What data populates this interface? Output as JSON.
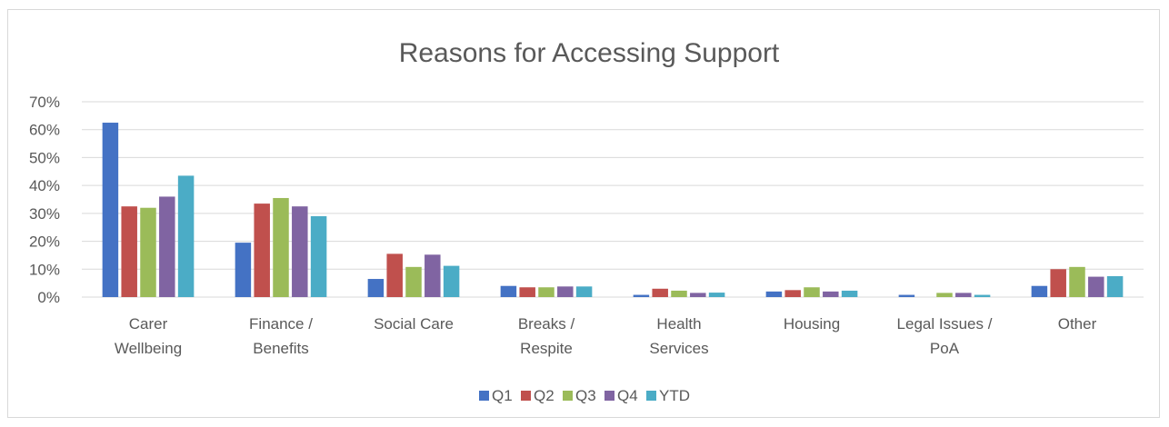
{
  "chart_data": {
    "type": "bar",
    "title": "Reasons for Accessing Support",
    "xlabel": "",
    "ylabel": "",
    "ylim": [
      0,
      70
    ],
    "y_ticks": [
      "0%",
      "10%",
      "20%",
      "30%",
      "40%",
      "50%",
      "60%",
      "70%"
    ],
    "grid": true,
    "legend_position": "bottom",
    "categories": [
      [
        "Carer",
        "Wellbeing"
      ],
      [
        "Finance /",
        "Benefits"
      ],
      [
        "Social Care"
      ],
      [
        "Breaks /",
        "Respite"
      ],
      [
        "Health",
        "Services"
      ],
      [
        "Housing"
      ],
      [
        "Legal Issues /",
        "PoA"
      ],
      [
        "Other"
      ]
    ],
    "series": [
      {
        "name": "Q1",
        "color": "#4472C4",
        "values": [
          62.5,
          19.5,
          6.5,
          4.0,
          0.8,
          2.0,
          0.8,
          4.0
        ]
      },
      {
        "name": "Q2",
        "color": "#C0504D",
        "values": [
          32.5,
          33.5,
          15.5,
          3.5,
          3.0,
          2.5,
          0.0,
          10.0
        ]
      },
      {
        "name": "Q3",
        "color": "#9BBB59",
        "values": [
          32.0,
          35.5,
          10.8,
          3.5,
          2.3,
          3.5,
          1.5,
          10.8
        ]
      },
      {
        "name": "Q4",
        "color": "#8064A2",
        "values": [
          36.0,
          32.5,
          15.2,
          3.8,
          1.5,
          2.0,
          1.5,
          7.3
        ]
      },
      {
        "name": "YTD",
        "color": "#4BACC6",
        "values": [
          43.5,
          29.0,
          11.2,
          3.8,
          1.6,
          2.3,
          0.8,
          7.5
        ]
      }
    ]
  }
}
